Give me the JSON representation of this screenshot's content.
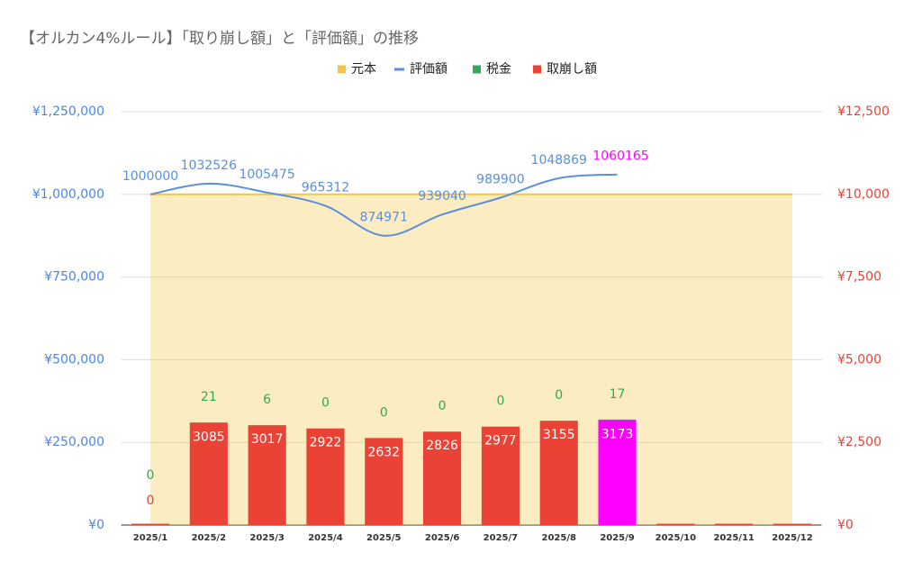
{
  "chart_data": {
    "type": "combo",
    "title": "【オルカン4%ルール】「取り崩し額」と「評価額」の推移",
    "categories": [
      "2025/1",
      "2025/2",
      "2025/3",
      "2025/4",
      "2025/5",
      "2025/6",
      "2025/7",
      "2025/8",
      "2025/9",
      "2025/10",
      "2025/11",
      "2025/12"
    ],
    "series": [
      {
        "name": "元本",
        "type": "area",
        "color": "#f4c542",
        "axis": "y",
        "values": [
          1000000,
          1000000,
          1000000,
          1000000,
          1000000,
          1000000,
          1000000,
          1000000,
          1000000,
          1000000,
          1000000,
          1000000
        ]
      },
      {
        "name": "評価額",
        "type": "line",
        "color": "#5b8fdc",
        "axis": "y",
        "values": [
          1000000,
          1032526,
          1005475,
          965312,
          874971,
          939040,
          989900,
          1048869,
          1060165,
          null,
          null,
          null
        ]
      },
      {
        "name": "税金",
        "type": "bar",
        "color": "#34a853",
        "axis": "y2",
        "values": [
          0,
          21,
          6,
          0,
          0,
          0,
          0,
          0,
          17,
          null,
          null,
          null
        ]
      },
      {
        "name": "取崩し額",
        "type": "bar",
        "color": "#ea4335",
        "axis": "y2",
        "values": [
          0,
          3085,
          3017,
          2922,
          2632,
          2826,
          2977,
          3155,
          3173,
          0,
          0,
          0
        ]
      }
    ],
    "highlight": {
      "index": 8,
      "color": "#ff00ff"
    },
    "ylim": [
      0,
      1250000
    ],
    "yticks": [
      {
        "value": 0,
        "label": "¥0"
      },
      {
        "value": 250000,
        "label": "¥250,000"
      },
      {
        "value": 500000,
        "label": "¥500,000"
      },
      {
        "value": 750000,
        "label": "¥750,000"
      },
      {
        "value": 1000000,
        "label": "¥1,000,000"
      },
      {
        "value": 1250000,
        "label": "¥1,250,000"
      }
    ],
    "y2lim": [
      0,
      12500
    ],
    "y2ticks": [
      {
        "value": 0,
        "label": "¥0"
      },
      {
        "value": 2500,
        "label": "¥2,500"
      },
      {
        "value": 5000,
        "label": "¥5,000"
      },
      {
        "value": 7500,
        "label": "¥7,500"
      },
      {
        "value": 10000,
        "label": "¥10,000"
      },
      {
        "value": 12500,
        "label": "¥12,500"
      }
    ],
    "grid": true,
    "legend": "top"
  }
}
